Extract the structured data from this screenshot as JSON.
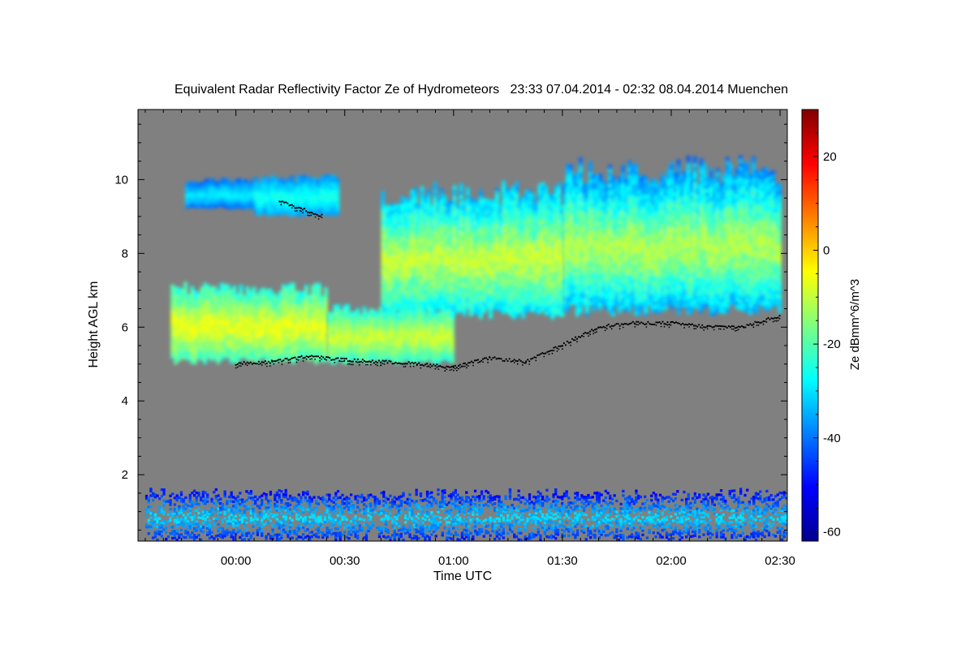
{
  "chart_data": {
    "type": "heatmap",
    "title": "Equivalent Radar Reflectivity Factor Ze of Hydrometeors   23:33 07.04.2014 - 02:32 08.04.2014 Muenchen",
    "xlabel": "Time UTC",
    "ylabel": "Height AGL km",
    "colorbar_label": "Ze dBmm^6/m^3",
    "x_ticks": [
      {
        "value": 0,
        "label": "00:00"
      },
      {
        "value": 30,
        "label": "00:30"
      },
      {
        "value": 60,
        "label": "01:00"
      },
      {
        "value": 90,
        "label": "01:30"
      },
      {
        "value": 120,
        "label": "02:00"
      },
      {
        "value": 150,
        "label": "02:30"
      }
    ],
    "y_ticks": [
      {
        "value": 2,
        "label": "2"
      },
      {
        "value": 4,
        "label": "4"
      },
      {
        "value": 6,
        "label": "6"
      },
      {
        "value": 8,
        "label": "8"
      },
      {
        "value": 10,
        "label": "10"
      }
    ],
    "colorbar_ticks": [
      {
        "value": 20,
        "label": "20"
      },
      {
        "value": 0,
        "label": "0"
      },
      {
        "value": -20,
        "label": "-20"
      },
      {
        "value": -40,
        "label": "-40"
      },
      {
        "value": -60,
        "label": "-60"
      }
    ],
    "xlim": [
      -27,
      152
    ],
    "ylim": [
      0.2,
      11.9
    ],
    "zlim": [
      -62,
      30
    ],
    "colormap": "jet",
    "background_color": "#808080",
    "cloud_base_marker_color": "#000000",
    "cloud_regions": [
      {
        "layer": "upper cirrus",
        "time_range": [
          -14,
          5
        ],
        "height_range": [
          9.2,
          10.0
        ],
        "ze_range": [
          -45,
          -28
        ]
      },
      {
        "layer": "upper cirrus",
        "time_range": [
          5,
          28
        ],
        "height_range": [
          9.0,
          10.1
        ],
        "ze_range": [
          -40,
          -25
        ]
      },
      {
        "layer": "deep ice cloud",
        "time_range": [
          40,
          90
        ],
        "height_range": [
          6.2,
          9.9
        ],
        "ze_range": [
          -40,
          -8
        ]
      },
      {
        "layer": "deep ice cloud",
        "time_range": [
          90,
          150
        ],
        "height_range": [
          6.3,
          10.6
        ],
        "ze_range": [
          -45,
          -10
        ]
      },
      {
        "layer": "mid-level cloud",
        "time_range": [
          -18,
          25
        ],
        "height_range": [
          5.0,
          7.2
        ],
        "ze_range": [
          -30,
          -5
        ]
      },
      {
        "layer": "mid-level cloud",
        "time_range": [
          25,
          60
        ],
        "height_range": [
          5.0,
          6.6
        ],
        "ze_range": [
          -30,
          -8
        ]
      },
      {
        "layer": "low-level clutter",
        "time_range": [
          -25,
          152
        ],
        "height_range": [
          0.2,
          1.6
        ],
        "ze_range": [
          -55,
          -30
        ]
      }
    ],
    "cloud_base": [
      {
        "time": 0,
        "height": 5.0
      },
      {
        "time": 10,
        "height": 5.05
      },
      {
        "time": 20,
        "height": 5.2
      },
      {
        "time": 30,
        "height": 5.1
      },
      {
        "time": 40,
        "height": 5.05
      },
      {
        "time": 50,
        "height": 5.0
      },
      {
        "time": 60,
        "height": 4.9
      },
      {
        "time": 70,
        "height": 5.15
      },
      {
        "time": 80,
        "height": 5.05
      },
      {
        "time": 90,
        "height": 5.5
      },
      {
        "time": 100,
        "height": 6.0
      },
      {
        "time": 110,
        "height": 6.1
      },
      {
        "time": 120,
        "height": 6.1
      },
      {
        "time": 130,
        "height": 6.0
      },
      {
        "time": 140,
        "height": 6.0
      },
      {
        "time": 150,
        "height": 6.3
      }
    ],
    "cirrus_base": [
      {
        "time": 12,
        "height": 9.4
      },
      {
        "time": 15,
        "height": 9.3
      },
      {
        "time": 18,
        "height": 9.2
      },
      {
        "time": 21,
        "height": 9.1
      },
      {
        "time": 24,
        "height": 9.0
      }
    ],
    "grid": false,
    "legend": "colorbar-right"
  }
}
